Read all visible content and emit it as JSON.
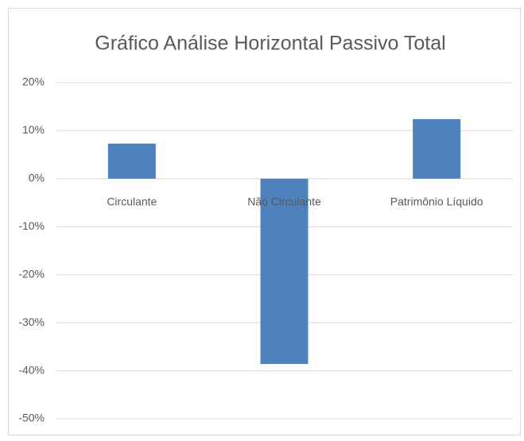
{
  "chart_data": {
    "type": "bar",
    "title": "Gráfico Análise Horizontal Passivo Total",
    "categories": [
      "Circulante",
      "Não Circulante",
      "Patrimônio Líquido"
    ],
    "values": [
      7.3,
      -38.6,
      12.4
    ],
    "color": "#4f81bd",
    "ylim": [
      -50,
      20
    ],
    "yticks": [
      {
        "value": -50,
        "label": "-50%"
      },
      {
        "value": -40,
        "label": "-40%"
      },
      {
        "value": -30,
        "label": "-30%"
      },
      {
        "value": -20,
        "label": "-20%"
      },
      {
        "value": -10,
        "label": "-10%"
      },
      {
        "value": 0,
        "label": "0%"
      },
      {
        "value": 10,
        "label": "10%"
      },
      {
        "value": 20,
        "label": "20%"
      }
    ],
    "grid": true
  }
}
